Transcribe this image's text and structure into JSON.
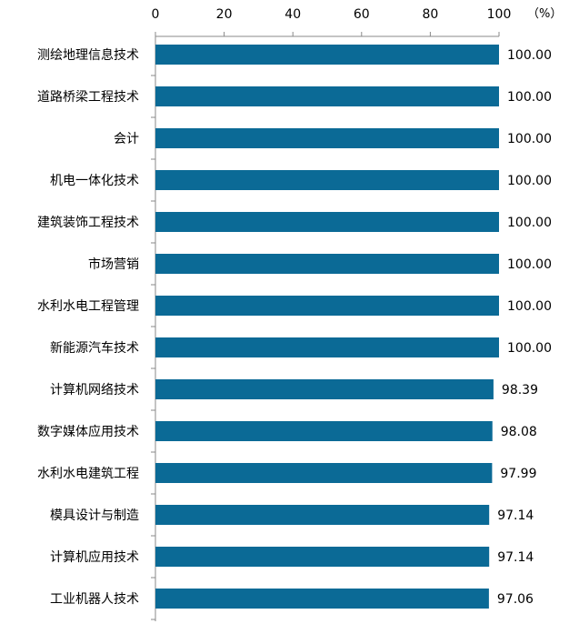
{
  "chart_data": {
    "type": "bar",
    "orientation": "horizontal",
    "categories": [
      "测绘地理信息技术",
      "道路桥梁工程技术",
      "会计",
      "机电一体化技术",
      "建筑装饰工程技术",
      "市场营销",
      "水利水电工程管理",
      "新能源汽车技术",
      "计算机网络技术",
      "数字媒体应用技术",
      "水利水电建筑工程",
      "模具设计与制造",
      "计算机应用技术",
      "工业机器人技术"
    ],
    "values": [
      100.0,
      100.0,
      100.0,
      100.0,
      100.0,
      100.0,
      100.0,
      100.0,
      98.39,
      98.08,
      97.99,
      97.14,
      97.14,
      97.06
    ],
    "value_labels": [
      "100.00",
      "100.00",
      "100.00",
      "100.00",
      "100.00",
      "100.00",
      "100.00",
      "100.00",
      "98.39",
      "98.08",
      "97.99",
      "97.14",
      "97.14",
      "97.06"
    ],
    "x_ticks": [
      "0",
      "20",
      "40",
      "60",
      "80",
      "100"
    ],
    "x_tick_values": [
      0,
      20,
      40,
      60,
      80,
      100
    ],
    "unit": "（%）",
    "xlim": [
      0,
      100
    ],
    "axis_position": "top",
    "grid": false,
    "legend": "none",
    "bar_color": "#0b6a96",
    "axis_color": "#888888"
  }
}
